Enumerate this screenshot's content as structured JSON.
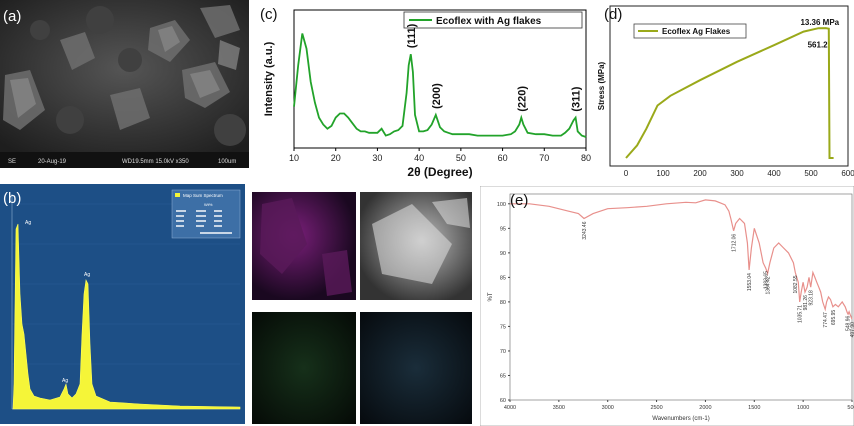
{
  "panels": {
    "a": {
      "label": "(a)",
      "footer": [
        "SE",
        "20-Aug-19",
        "WD19.5mm 15.0kV x350",
        "100um"
      ]
    },
    "b": {
      "label": "(b)",
      "legend": "Map Sum Spectrum",
      "table_header": "Wt%",
      "peak_labels": [
        "Ag",
        "Ag",
        "Ag"
      ]
    },
    "c": {
      "label": "(c)"
    },
    "d": {
      "label": "(d)"
    },
    "e": {
      "label": "(e)"
    }
  },
  "chart_data": [
    {
      "id": "xrd",
      "type": "line",
      "legend": "Ecoflex with  Ag flakes",
      "xlabel": "2θ (Degree)",
      "ylabel": "Intensity (a.u.)",
      "xlim": [
        10,
        80
      ],
      "ylim": [
        0,
        100
      ],
      "xticks": [
        10,
        20,
        30,
        40,
        50,
        60,
        70,
        80
      ],
      "show_y_ticks": false,
      "color": "#22a32a",
      "x": [
        10,
        11,
        12,
        13,
        14,
        15,
        16,
        17,
        18,
        19,
        20,
        21,
        22,
        23,
        24,
        25,
        26,
        27,
        28,
        29,
        30,
        31,
        32,
        33,
        34,
        35,
        36,
        37,
        37.5,
        38,
        38.5,
        39,
        40,
        41,
        42,
        43,
        44,
        45,
        46,
        47,
        48,
        50,
        52,
        54,
        56,
        58,
        60,
        62,
        63,
        64,
        64.5,
        65,
        66,
        68,
        70,
        72,
        74,
        75,
        76,
        77,
        77.5,
        78,
        79,
        80
      ],
      "y": [
        30,
        60,
        83,
        72,
        48,
        33,
        22,
        17,
        14,
        16,
        22,
        25,
        25,
        22,
        18,
        14,
        12,
        12,
        11,
        11,
        11,
        14,
        9,
        10,
        12,
        13,
        16,
        40,
        60,
        68,
        55,
        24,
        12,
        12,
        13,
        17,
        24,
        15,
        12,
        11,
        10,
        10,
        10,
        9,
        9,
        9,
        9,
        10,
        12,
        17,
        22,
        17,
        11,
        10,
        10,
        9,
        9,
        11,
        14,
        20,
        22,
        12,
        9,
        8
      ],
      "annotations": [
        {
          "text": "(111)",
          "x": 38
        },
        {
          "text": "(200)",
          "x": 44
        },
        {
          "text": "(220)",
          "x": 64.5
        },
        {
          "text": "(311)",
          "x": 77.5
        }
      ]
    },
    {
      "id": "stress",
      "type": "line",
      "legend": "Ecoflex Ag Flakes",
      "xlabel": "",
      "ylabel": "Stress (MPa)",
      "xlim": [
        0,
        600
      ],
      "ylim": [
        0,
        14.4
      ],
      "xticks": [
        0,
        100,
        200,
        300,
        400,
        500,
        600
      ],
      "show_y_ticks": false,
      "color": "#9aa91a",
      "x": [
        0,
        30,
        55,
        85,
        120,
        200,
        300,
        400,
        480,
        520,
        540,
        548,
        550,
        556,
        561.2
      ],
      "y": [
        0,
        1.3,
        3.0,
        5.4,
        6.4,
        8.0,
        9.9,
        11.6,
        13.0,
        13.35,
        13.36,
        13.3,
        0,
        0,
        0
      ],
      "annotations": [
        {
          "text": "13.36 MPa",
          "x": 540,
          "y": 13.36
        },
        {
          "text": "561.2",
          "x": 561.2,
          "y": 11.7
        }
      ]
    },
    {
      "id": "ftir",
      "type": "line",
      "xlabel": "Wavenumbers (cm-1)",
      "ylabel": "%T",
      "xlim": [
        4000,
        500
      ],
      "ylim": [
        60,
        102
      ],
      "xticks": [
        4000,
        3500,
        3000,
        2500,
        2000,
        1500,
        1000,
        500
      ],
      "yticks": [
        60,
        65,
        70,
        75,
        80,
        85,
        90,
        95,
        100
      ],
      "color": "#e8908c",
      "x": [
        4000,
        3800,
        3600,
        3400,
        3300,
        3243,
        3150,
        3000,
        2800,
        2600,
        2400,
        2200,
        2100,
        2000,
        1900,
        1850,
        1800,
        1760,
        1740,
        1712,
        1690,
        1650,
        1600,
        1570,
        1553,
        1530,
        1500,
        1450,
        1410,
        1383,
        1364,
        1340,
        1300,
        1250,
        1200,
        1150,
        1100,
        1080,
        1050,
        1035,
        1020,
        1000,
        981,
        960,
        940,
        923,
        900,
        880,
        860,
        840,
        820,
        800,
        774,
        760,
        740,
        720,
        695,
        670,
        640,
        600,
        570,
        548,
        540,
        530,
        520,
        510,
        500
      ],
      "y": [
        100,
        100,
        99.5,
        98.5,
        98,
        97,
        98,
        99,
        99.2,
        99.5,
        100,
        100.3,
        100.2,
        100.8,
        100.6,
        100.2,
        99.8,
        98.5,
        97,
        94.5,
        96,
        97,
        96,
        92,
        86.5,
        91,
        95,
        92,
        88,
        86.9,
        85.8,
        88,
        91,
        92,
        91,
        90,
        88,
        86,
        84,
        80,
        82,
        84,
        82,
        83,
        85,
        83,
        86,
        85,
        84,
        83,
        82,
        80,
        78.5,
        80,
        81,
        80.5,
        79,
        79.5,
        79,
        80,
        79,
        77.8,
        77.5,
        78,
        77.5,
        77,
        76.5
      ],
      "peak_labels": [
        {
          "text": "3243.46",
          "x": 3243
        },
        {
          "text": "1712.06",
          "x": 1712
        },
        {
          "text": "1553.04",
          "x": 1553
        },
        {
          "text": "1383.65",
          "x": 1383
        },
        {
          "text": "1364.42",
          "x": 1364
        },
        {
          "text": "1082.55",
          "x": 1082
        },
        {
          "text": "1035.71",
          "x": 1035
        },
        {
          "text": "981.26",
          "x": 981
        },
        {
          "text": "923.18",
          "x": 923
        },
        {
          "text": "774.47",
          "x": 774
        },
        {
          "text": "695.95",
          "x": 695
        },
        {
          "text": "548.96",
          "x": 548
        },
        {
          "text": "497.90",
          "x": 498
        }
      ]
    }
  ]
}
